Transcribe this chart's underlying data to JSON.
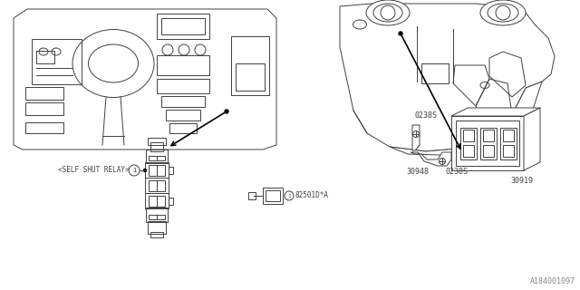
{
  "bg_color": "#ffffff",
  "line_color": "#404040",
  "text_color": "#404040",
  "labels": {
    "self_shut_relay": "<SELF SHUT RELAY>",
    "relay_code": "82501D*A",
    "part1": "30948",
    "part2": "0238S",
    "part3": "0238S",
    "part4": "30919",
    "watermark": "A184001097"
  },
  "figsize": [
    6.4,
    3.2
  ],
  "dpi": 100
}
